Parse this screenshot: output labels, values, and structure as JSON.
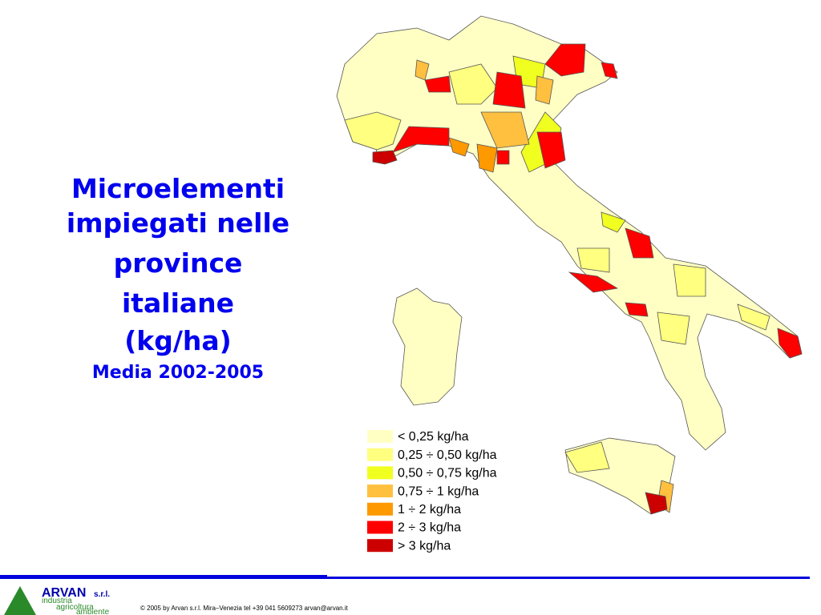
{
  "title": [
    "Microelementi",
    "impiegati nelle",
    "province",
    "italiane",
    "(kg/ha)"
  ],
  "subtitle": "Media 2002-2005",
  "legend": [
    {
      "label": "<  0,25 kg/ha",
      "color": "#ffffc4"
    },
    {
      "label": "0,25 ÷ 0,50 kg/ha",
      "color": "#ffff80"
    },
    {
      "label": "0,50 ÷ 0,75 kg/ha",
      "color": "#f0ff20"
    },
    {
      "label": "0,75 ÷ 1 kg/ha",
      "color": "#ffc040"
    },
    {
      "label": "1 ÷ 2 kg/ha",
      "color": "#ff9900"
    },
    {
      "label": "2 ÷ 3 kg/ha",
      "color": "#ff0000"
    },
    {
      "label": "> 3 kg/ha",
      "color": "#cc0000"
    }
  ],
  "footer": {
    "logo": "ARVAN",
    "logo_suffix": "s.r.l.",
    "tagline": [
      "industria",
      "agricoltura",
      "ambiente"
    ],
    "copyright": "© 2005 by Arvan s.r.l. Mira–Venezia tel +39 041 5609273 arvan@arvan.it"
  }
}
